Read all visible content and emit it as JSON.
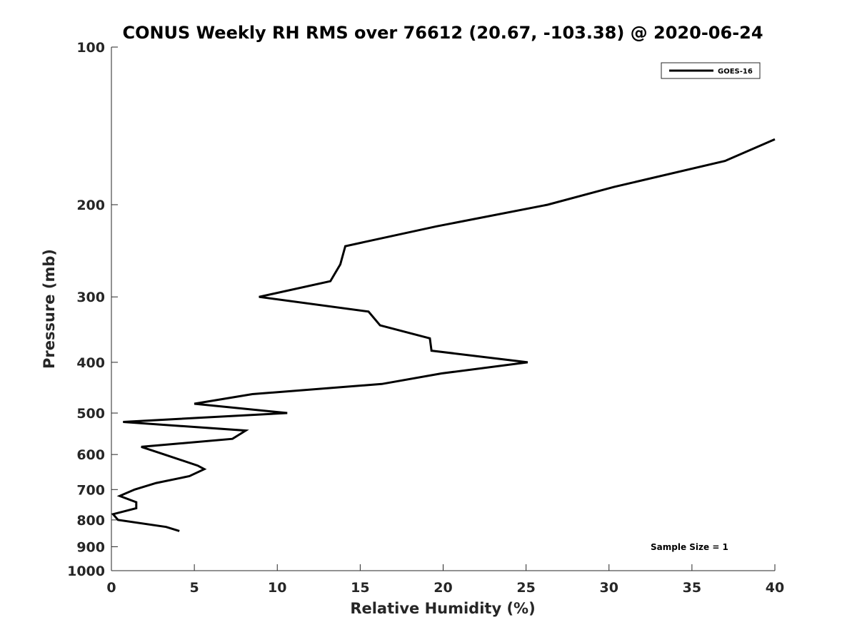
{
  "chart_data": {
    "type": "line",
    "title": "CONUS Weekly RH RMS over 76612 (20.67, -103.38) @ 2020-06-24",
    "xlabel": "Relative Humidity (%)",
    "ylabel": "Pressure (mb)",
    "xlim": [
      0,
      40
    ],
    "ylim": [
      1000,
      100
    ],
    "y_scale": "log",
    "y_reversed": true,
    "grid": false,
    "legend_position": "top-right",
    "x_ticks": [
      "0",
      "5",
      "10",
      "15",
      "20",
      "25",
      "30",
      "35",
      "40"
    ],
    "y_ticks": [
      "100",
      "200",
      "300",
      "400",
      "500",
      "600",
      "700",
      "800",
      "900",
      "1000"
    ],
    "annotation": "Sample Size = 1",
    "series": [
      {
        "name": "GOES-16",
        "color": "#000000",
        "points": [
          {
            "x": 40.0,
            "y": 150
          },
          {
            "x": 37.0,
            "y": 165
          },
          {
            "x": 30.3,
            "y": 185
          },
          {
            "x": 26.3,
            "y": 200
          },
          {
            "x": 19.6,
            "y": 220
          },
          {
            "x": 14.1,
            "y": 240
          },
          {
            "x": 13.8,
            "y": 260
          },
          {
            "x": 13.2,
            "y": 280
          },
          {
            "x": 8.9,
            "y": 300
          },
          {
            "x": 15.5,
            "y": 320
          },
          {
            "x": 16.2,
            "y": 340
          },
          {
            "x": 19.2,
            "y": 360
          },
          {
            "x": 19.3,
            "y": 380
          },
          {
            "x": 25.1,
            "y": 400
          },
          {
            "x": 19.9,
            "y": 420
          },
          {
            "x": 16.3,
            "y": 440
          },
          {
            "x": 8.5,
            "y": 460
          },
          {
            "x": 5.0,
            "y": 480
          },
          {
            "x": 10.6,
            "y": 500
          },
          {
            "x": 0.7,
            "y": 520
          },
          {
            "x": 8.1,
            "y": 540
          },
          {
            "x": 7.3,
            "y": 560
          },
          {
            "x": 1.8,
            "y": 580
          },
          {
            "x": 3.2,
            "y": 600
          },
          {
            "x": 5.2,
            "y": 630
          },
          {
            "x": 5.6,
            "y": 640
          },
          {
            "x": 4.7,
            "y": 660
          },
          {
            "x": 2.7,
            "y": 680
          },
          {
            "x": 1.4,
            "y": 700
          },
          {
            "x": 0.5,
            "y": 720
          },
          {
            "x": 1.5,
            "y": 740
          },
          {
            "x": 1.5,
            "y": 760
          },
          {
            "x": 0.1,
            "y": 780
          },
          {
            "x": 0.4,
            "y": 800
          },
          {
            "x": 3.3,
            "y": 825
          },
          {
            "x": 4.1,
            "y": 840
          }
        ]
      }
    ]
  }
}
